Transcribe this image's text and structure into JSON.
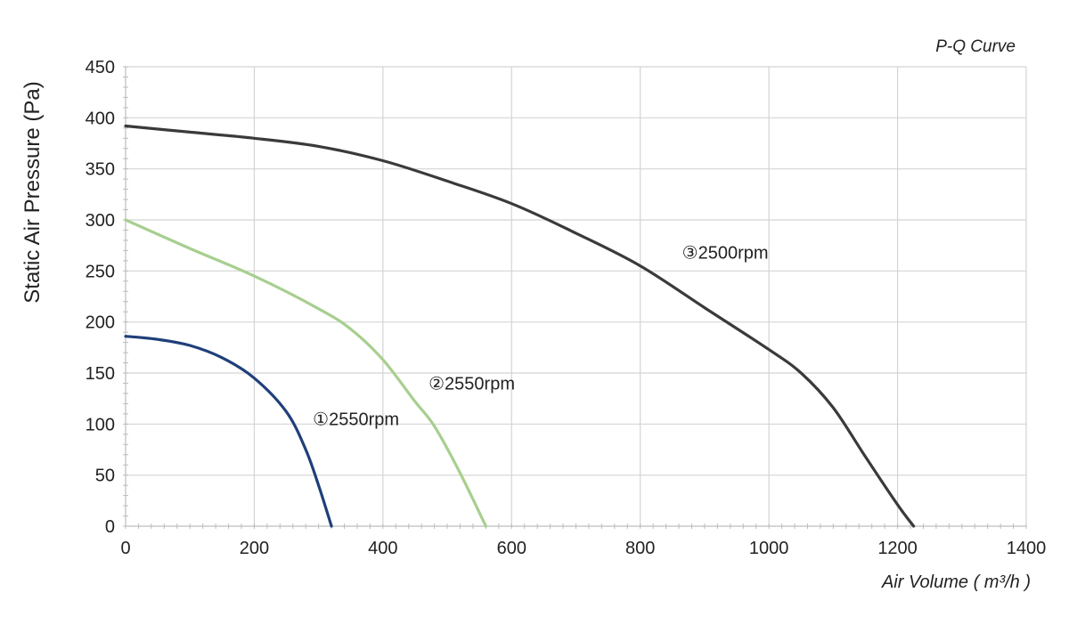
{
  "chart_data": {
    "type": "line",
    "title": "P-Q Curve",
    "xlabel": "Air Volume ( m³/h )",
    "ylabel": "Static Air Pressure  (Pa)",
    "xlim": [
      0,
      1400
    ],
    "ylim": [
      0,
      450
    ],
    "x_ticks": [
      0,
      200,
      400,
      600,
      800,
      1000,
      1200,
      1400
    ],
    "y_ticks": [
      0,
      50,
      100,
      150,
      200,
      250,
      300,
      350,
      400,
      450
    ],
    "grid": true,
    "series": [
      {
        "name": "①2550rpm",
        "color": "#1f3f7a",
        "x": [
          0,
          50,
          100,
          150,
          200,
          250,
          280,
          300,
          320
        ],
        "y": [
          186,
          183,
          177,
          165,
          145,
          112,
          75,
          40,
          0
        ]
      },
      {
        "name": "②2550rpm",
        "color": "#a7cf8f",
        "x": [
          0,
          100,
          200,
          300,
          350,
          400,
          450,
          480,
          520,
          560
        ],
        "y": [
          300,
          272,
          245,
          213,
          193,
          163,
          122,
          98,
          52,
          0
        ]
      },
      {
        "name": "③2500rpm",
        "color": "#3a3a3a",
        "x": [
          0,
          100,
          200,
          300,
          400,
          500,
          600,
          700,
          800,
          900,
          1000,
          1050,
          1100,
          1150,
          1200,
          1225
        ],
        "y": [
          392,
          386,
          380,
          372,
          358,
          338,
          316,
          287,
          255,
          214,
          173,
          150,
          116,
          68,
          21,
          0
        ]
      }
    ]
  }
}
